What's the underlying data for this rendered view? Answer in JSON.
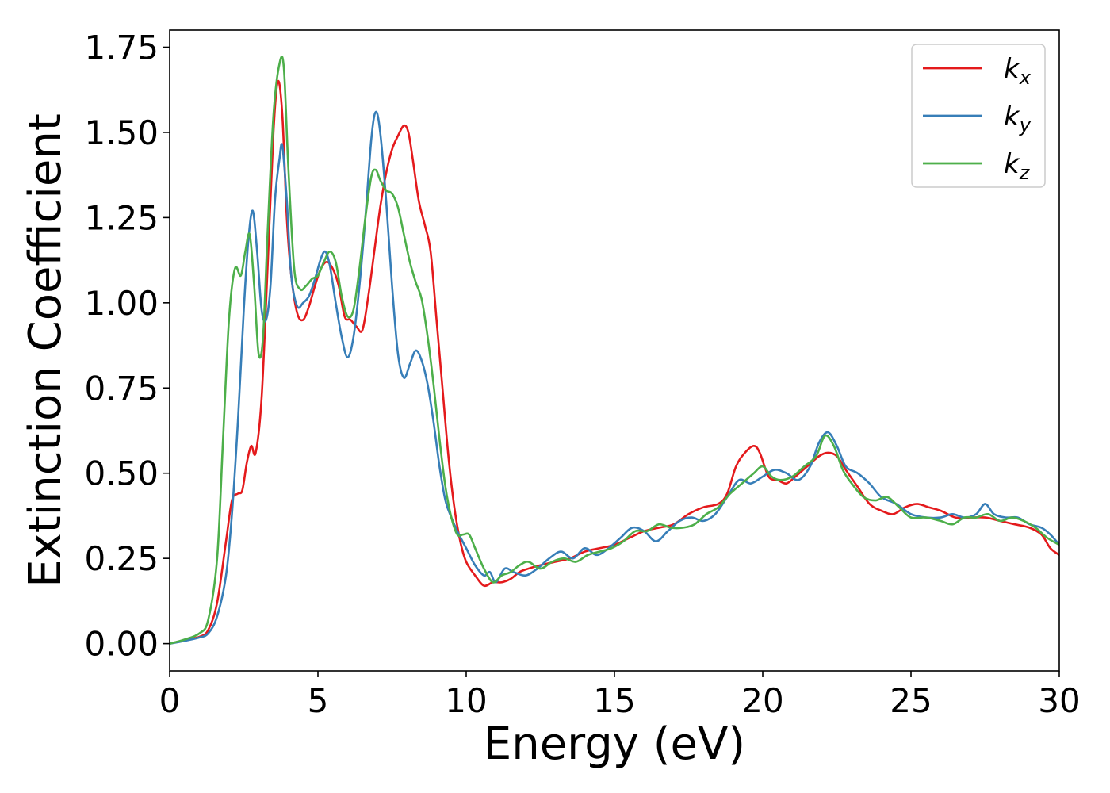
{
  "chart_data": {
    "type": "line",
    "title": "",
    "xlabel": "Energy (eV)",
    "ylabel": "Extinction Coefficient",
    "xlim": [
      0,
      30
    ],
    "ylim": [
      -0.08,
      1.8
    ],
    "xticks": [
      0,
      5,
      10,
      15,
      20,
      25,
      30
    ],
    "xtick_labels": [
      "0",
      "5",
      "10",
      "15",
      "20",
      "25",
      "30"
    ],
    "yticks": [
      0,
      0.25,
      0.5,
      0.75,
      1.0,
      1.25,
      1.5,
      1.75
    ],
    "ytick_labels": [
      "0.00",
      "0.25",
      "0.50",
      "0.75",
      "1.00",
      "1.25",
      "1.50",
      "1.75"
    ],
    "grid": false,
    "legend_position": "top-right",
    "series": [
      {
        "name": "k",
        "subscript": "x",
        "color": "#e41a1c",
        "points": [
          [
            0,
            0
          ],
          [
            0.5,
            0.01
          ],
          [
            1,
            0.02
          ],
          [
            1.3,
            0.04
          ],
          [
            1.6,
            0.12
          ],
          [
            1.9,
            0.3
          ],
          [
            2.1,
            0.42
          ],
          [
            2.3,
            0.44
          ],
          [
            2.45,
            0.45
          ],
          [
            2.6,
            0.53
          ],
          [
            2.75,
            0.58
          ],
          [
            2.9,
            0.56
          ],
          [
            3.1,
            0.72
          ],
          [
            3.3,
            1.1
          ],
          [
            3.5,
            1.5
          ],
          [
            3.65,
            1.65
          ],
          [
            3.8,
            1.55
          ],
          [
            3.95,
            1.25
          ],
          [
            4.1,
            1.08
          ],
          [
            4.3,
            0.97
          ],
          [
            4.5,
            0.95
          ],
          [
            4.7,
            0.99
          ],
          [
            4.9,
            1.05
          ],
          [
            5.1,
            1.1
          ],
          [
            5.3,
            1.12
          ],
          [
            5.5,
            1.1
          ],
          [
            5.7,
            1.05
          ],
          [
            5.9,
            0.96
          ],
          [
            6.1,
            0.95
          ],
          [
            6.3,
            0.93
          ],
          [
            6.5,
            0.92
          ],
          [
            6.7,
            1.02
          ],
          [
            6.9,
            1.15
          ],
          [
            7.1,
            1.28
          ],
          [
            7.3,
            1.38
          ],
          [
            7.5,
            1.45
          ],
          [
            7.7,
            1.49
          ],
          [
            7.9,
            1.52
          ],
          [
            8.05,
            1.5
          ],
          [
            8.2,
            1.42
          ],
          [
            8.4,
            1.3
          ],
          [
            8.6,
            1.23
          ],
          [
            8.8,
            1.15
          ],
          [
            9.0,
            0.95
          ],
          [
            9.2,
            0.75
          ],
          [
            9.4,
            0.55
          ],
          [
            9.6,
            0.4
          ],
          [
            9.8,
            0.3
          ],
          [
            10,
            0.24
          ],
          [
            10.3,
            0.2
          ],
          [
            10.6,
            0.17
          ],
          [
            10.9,
            0.18
          ],
          [
            11.2,
            0.18
          ],
          [
            11.5,
            0.19
          ],
          [
            11.8,
            0.21
          ],
          [
            12.1,
            0.22
          ],
          [
            12.5,
            0.23
          ],
          [
            13,
            0.24
          ],
          [
            13.5,
            0.25
          ],
          [
            14,
            0.27
          ],
          [
            14.5,
            0.28
          ],
          [
            15,
            0.29
          ],
          [
            15.5,
            0.31
          ],
          [
            16,
            0.33
          ],
          [
            16.5,
            0.34
          ],
          [
            17,
            0.35
          ],
          [
            17.5,
            0.38
          ],
          [
            18,
            0.4
          ],
          [
            18.5,
            0.41
          ],
          [
            18.8,
            0.44
          ],
          [
            19.1,
            0.52
          ],
          [
            19.4,
            0.56
          ],
          [
            19.7,
            0.58
          ],
          [
            19.9,
            0.56
          ],
          [
            20.2,
            0.49
          ],
          [
            20.5,
            0.48
          ],
          [
            20.8,
            0.47
          ],
          [
            21.1,
            0.49
          ],
          [
            21.5,
            0.52
          ],
          [
            21.9,
            0.55
          ],
          [
            22.2,
            0.56
          ],
          [
            22.5,
            0.55
          ],
          [
            22.8,
            0.51
          ],
          [
            23.2,
            0.46
          ],
          [
            23.6,
            0.41
          ],
          [
            24,
            0.39
          ],
          [
            24.4,
            0.38
          ],
          [
            24.8,
            0.4
          ],
          [
            25.2,
            0.41
          ],
          [
            25.6,
            0.4
          ],
          [
            26,
            0.39
          ],
          [
            26.5,
            0.37
          ],
          [
            27,
            0.37
          ],
          [
            27.5,
            0.37
          ],
          [
            28,
            0.36
          ],
          [
            28.5,
            0.35
          ],
          [
            29,
            0.34
          ],
          [
            29.4,
            0.32
          ],
          [
            29.7,
            0.28
          ],
          [
            30,
            0.26
          ]
        ]
      },
      {
        "name": "k",
        "subscript": "y",
        "color": "#377eb8",
        "points": [
          [
            0,
            0
          ],
          [
            0.5,
            0.008
          ],
          [
            1,
            0.018
          ],
          [
            1.3,
            0.03
          ],
          [
            1.6,
            0.08
          ],
          [
            1.9,
            0.2
          ],
          [
            2.1,
            0.38
          ],
          [
            2.3,
            0.65
          ],
          [
            2.5,
            0.98
          ],
          [
            2.65,
            1.18
          ],
          [
            2.8,
            1.27
          ],
          [
            2.95,
            1.15
          ],
          [
            3.1,
            0.98
          ],
          [
            3.25,
            0.95
          ],
          [
            3.4,
            1.05
          ],
          [
            3.55,
            1.3
          ],
          [
            3.7,
            1.42
          ],
          [
            3.8,
            1.46
          ],
          [
            3.95,
            1.3
          ],
          [
            4.1,
            1.08
          ],
          [
            4.3,
            0.99
          ],
          [
            4.5,
            1.0
          ],
          [
            4.7,
            1.02
          ],
          [
            4.9,
            1.07
          ],
          [
            5.1,
            1.13
          ],
          [
            5.25,
            1.15
          ],
          [
            5.4,
            1.11
          ],
          [
            5.6,
            1.0
          ],
          [
            5.8,
            0.9
          ],
          [
            6.0,
            0.84
          ],
          [
            6.2,
            0.9
          ],
          [
            6.4,
            1.05
          ],
          [
            6.6,
            1.25
          ],
          [
            6.8,
            1.48
          ],
          [
            6.95,
            1.56
          ],
          [
            7.1,
            1.5
          ],
          [
            7.3,
            1.3
          ],
          [
            7.5,
            1.05
          ],
          [
            7.7,
            0.85
          ],
          [
            7.9,
            0.78
          ],
          [
            8.1,
            0.82
          ],
          [
            8.3,
            0.86
          ],
          [
            8.5,
            0.83
          ],
          [
            8.7,
            0.76
          ],
          [
            8.9,
            0.65
          ],
          [
            9.1,
            0.52
          ],
          [
            9.3,
            0.42
          ],
          [
            9.5,
            0.37
          ],
          [
            9.7,
            0.33
          ],
          [
            10,
            0.28
          ],
          [
            10.3,
            0.23
          ],
          [
            10.6,
            0.2
          ],
          [
            10.8,
            0.21
          ],
          [
            11,
            0.18
          ],
          [
            11.3,
            0.22
          ],
          [
            11.6,
            0.21
          ],
          [
            12,
            0.2
          ],
          [
            12.4,
            0.22
          ],
          [
            12.8,
            0.25
          ],
          [
            13.2,
            0.27
          ],
          [
            13.6,
            0.25
          ],
          [
            14,
            0.28
          ],
          [
            14.4,
            0.26
          ],
          [
            14.8,
            0.28
          ],
          [
            15.2,
            0.31
          ],
          [
            15.6,
            0.34
          ],
          [
            16,
            0.33
          ],
          [
            16.4,
            0.3
          ],
          [
            16.8,
            0.33
          ],
          [
            17.2,
            0.36
          ],
          [
            17.6,
            0.37
          ],
          [
            18,
            0.36
          ],
          [
            18.4,
            0.38
          ],
          [
            18.8,
            0.43
          ],
          [
            19.2,
            0.48
          ],
          [
            19.6,
            0.47
          ],
          [
            20,
            0.49
          ],
          [
            20.4,
            0.51
          ],
          [
            20.8,
            0.5
          ],
          [
            21.2,
            0.48
          ],
          [
            21.6,
            0.52
          ],
          [
            21.9,
            0.59
          ],
          [
            22.2,
            0.62
          ],
          [
            22.5,
            0.58
          ],
          [
            22.8,
            0.52
          ],
          [
            23.2,
            0.5
          ],
          [
            23.6,
            0.47
          ],
          [
            24,
            0.43
          ],
          [
            24.5,
            0.41
          ],
          [
            25,
            0.38
          ],
          [
            25.5,
            0.37
          ],
          [
            26,
            0.37
          ],
          [
            26.4,
            0.38
          ],
          [
            26.8,
            0.37
          ],
          [
            27.2,
            0.38
          ],
          [
            27.5,
            0.41
          ],
          [
            27.8,
            0.38
          ],
          [
            28.2,
            0.37
          ],
          [
            28.6,
            0.37
          ],
          [
            29,
            0.35
          ],
          [
            29.4,
            0.34
          ],
          [
            29.7,
            0.32
          ],
          [
            30,
            0.29
          ]
        ]
      },
      {
        "name": "k",
        "subscript": "z",
        "color": "#4daf4a",
        "points": [
          [
            0,
            0
          ],
          [
            0.5,
            0.012
          ],
          [
            1,
            0.03
          ],
          [
            1.3,
            0.07
          ],
          [
            1.6,
            0.25
          ],
          [
            1.8,
            0.6
          ],
          [
            2.0,
            0.95
          ],
          [
            2.2,
            1.1
          ],
          [
            2.4,
            1.08
          ],
          [
            2.55,
            1.15
          ],
          [
            2.7,
            1.2
          ],
          [
            2.85,
            1.05
          ],
          [
            3.0,
            0.85
          ],
          [
            3.15,
            0.9
          ],
          [
            3.3,
            1.2
          ],
          [
            3.5,
            1.55
          ],
          [
            3.7,
            1.7
          ],
          [
            3.85,
            1.69
          ],
          [
            4.0,
            1.4
          ],
          [
            4.2,
            1.1
          ],
          [
            4.4,
            1.04
          ],
          [
            4.6,
            1.05
          ],
          [
            4.8,
            1.07
          ],
          [
            5.0,
            1.08
          ],
          [
            5.2,
            1.12
          ],
          [
            5.4,
            1.15
          ],
          [
            5.6,
            1.12
          ],
          [
            5.8,
            1.02
          ],
          [
            6.0,
            0.96
          ],
          [
            6.2,
            0.98
          ],
          [
            6.4,
            1.1
          ],
          [
            6.6,
            1.25
          ],
          [
            6.8,
            1.37
          ],
          [
            6.95,
            1.39
          ],
          [
            7.1,
            1.36
          ],
          [
            7.3,
            1.33
          ],
          [
            7.5,
            1.32
          ],
          [
            7.7,
            1.28
          ],
          [
            7.9,
            1.2
          ],
          [
            8.1,
            1.12
          ],
          [
            8.3,
            1.06
          ],
          [
            8.5,
            1.01
          ],
          [
            8.7,
            0.9
          ],
          [
            8.9,
            0.76
          ],
          [
            9.1,
            0.6
          ],
          [
            9.3,
            0.46
          ],
          [
            9.5,
            0.37
          ],
          [
            9.7,
            0.32
          ],
          [
            9.9,
            0.32
          ],
          [
            10.1,
            0.32
          ],
          [
            10.3,
            0.28
          ],
          [
            10.6,
            0.22
          ],
          [
            10.9,
            0.18
          ],
          [
            11.2,
            0.2
          ],
          [
            11.5,
            0.21
          ],
          [
            11.8,
            0.23
          ],
          [
            12.1,
            0.24
          ],
          [
            12.5,
            0.22
          ],
          [
            12.9,
            0.24
          ],
          [
            13.3,
            0.25
          ],
          [
            13.7,
            0.24
          ],
          [
            14.1,
            0.26
          ],
          [
            14.5,
            0.27
          ],
          [
            14.9,
            0.28
          ],
          [
            15.3,
            0.3
          ],
          [
            15.7,
            0.33
          ],
          [
            16.1,
            0.33
          ],
          [
            16.5,
            0.35
          ],
          [
            16.9,
            0.34
          ],
          [
            17.3,
            0.34
          ],
          [
            17.7,
            0.35
          ],
          [
            18.1,
            0.38
          ],
          [
            18.5,
            0.4
          ],
          [
            18.9,
            0.44
          ],
          [
            19.3,
            0.47
          ],
          [
            19.7,
            0.5
          ],
          [
            20,
            0.52
          ],
          [
            20.3,
            0.49
          ],
          [
            20.6,
            0.48
          ],
          [
            21,
            0.49
          ],
          [
            21.4,
            0.52
          ],
          [
            21.8,
            0.55
          ],
          [
            22.1,
            0.61
          ],
          [
            22.4,
            0.58
          ],
          [
            22.7,
            0.51
          ],
          [
            23,
            0.47
          ],
          [
            23.4,
            0.43
          ],
          [
            23.8,
            0.42
          ],
          [
            24.2,
            0.43
          ],
          [
            24.6,
            0.4
          ],
          [
            25,
            0.37
          ],
          [
            25.5,
            0.37
          ],
          [
            26,
            0.36
          ],
          [
            26.4,
            0.35
          ],
          [
            26.8,
            0.37
          ],
          [
            27.2,
            0.37
          ],
          [
            27.6,
            0.38
          ],
          [
            28,
            0.36
          ],
          [
            28.4,
            0.37
          ],
          [
            28.8,
            0.36
          ],
          [
            29.2,
            0.34
          ],
          [
            29.6,
            0.31
          ],
          [
            30,
            0.29
          ]
        ]
      }
    ]
  }
}
